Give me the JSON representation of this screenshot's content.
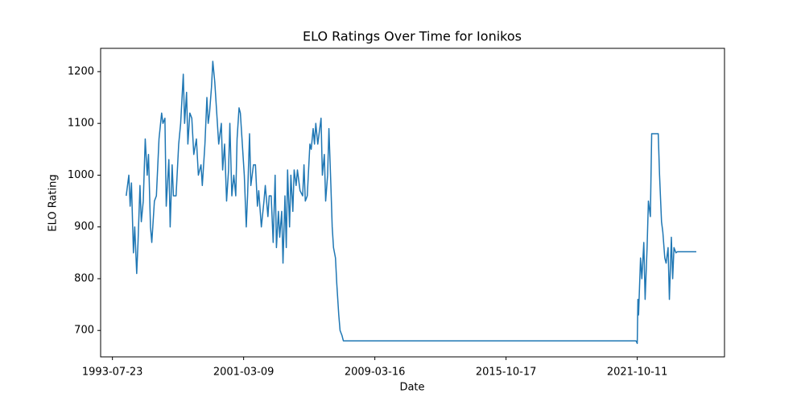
{
  "chart_data": {
    "type": "line",
    "title": "ELO Ratings Over Time for Ionikos",
    "x_label": "Date",
    "y_label": "ELO Rating",
    "x": [
      21,
      25,
      27,
      29,
      32,
      34,
      37,
      39,
      42,
      44,
      47,
      50,
      53,
      55,
      58,
      60,
      64,
      67,
      71,
      75,
      77,
      80,
      82,
      86,
      88,
      91,
      93,
      97,
      101,
      104,
      108,
      110,
      113,
      115,
      118,
      121,
      124,
      128,
      131,
      135,
      137,
      141,
      144,
      146,
      148,
      151,
      153,
      156,
      160,
      162,
      166,
      168,
      171,
      174,
      177,
      179,
      182,
      185,
      188,
      190,
      193,
      195,
      198,
      201,
      204,
      206,
      209,
      211,
      215,
      218,
      221,
      223,
      227,
      231,
      233,
      237,
      239,
      242,
      245,
      248,
      250,
      253,
      255,
      258,
      260,
      263,
      265,
      267,
      270,
      272,
      275,
      277,
      280,
      282,
      286,
      290,
      292,
      294,
      297,
      301,
      303,
      306,
      308,
      310,
      313,
      315,
      318,
      320,
      323,
      325,
      328,
      330,
      333,
      335,
      337,
      340,
      342,
      345,
      347,
      350,
      352,
      798,
      800,
      801,
      802,
      805,
      807,
      810,
      812,
      815,
      817,
      820,
      822,
      832,
      834,
      837,
      839,
      842,
      844,
      847,
      849,
      852,
      854,
      856,
      859,
      861,
      890
    ],
    "series": [
      {
        "name": "Ionikos",
        "color": "#1f77b4",
        "values": [
          960,
          1000,
          940,
          985,
          850,
          900,
          810,
          870,
          980,
          910,
          950,
          1070,
          1000,
          1040,
          900,
          870,
          950,
          960,
          1070,
          1120,
          1100,
          1110,
          940,
          1030,
          900,
          1020,
          960,
          960,
          1060,
          1100,
          1195,
          1100,
          1160,
          1060,
          1120,
          1110,
          1040,
          1070,
          1000,
          1020,
          980,
          1060,
          1150,
          1100,
          1120,
          1170,
          1220,
          1180,
          1100,
          1060,
          1100,
          1010,
          1060,
          950,
          1010,
          1100,
          960,
          1000,
          960,
          1070,
          1130,
          1120,
          1060,
          1000,
          900,
          960,
          1080,
          980,
          1020,
          1020,
          940,
          970,
          900,
          950,
          980,
          920,
          960,
          960,
          870,
          1000,
          860,
          930,
          880,
          930,
          830,
          960,
          860,
          1010,
          900,
          1000,
          930,
          1010,
          980,
          1010,
          970,
          960,
          1020,
          950,
          960,
          1060,
          1050,
          1090,
          1060,
          1100,
          1060,
          1080,
          1110,
          1000,
          1040,
          950,
          1000,
          1090,
          980,
          900,
          860,
          840,
          790,
          730,
          700,
          690,
          680,
          680,
          675,
          760,
          730,
          840,
          800,
          870,
          760,
          860,
          950,
          920,
          1080,
          1080,
          1000,
          910,
          890,
          840,
          830,
          860,
          760,
          880,
          800,
          860,
          850,
          852,
          852
        ]
      }
    ],
    "xlim": [
      -18,
      933
    ],
    "xticks": [
      {
        "value": 0,
        "label": "1993-07-23"
      },
      {
        "value": 200,
        "label": "2001-03-09"
      },
      {
        "value": 400,
        "label": "2009-03-16"
      },
      {
        "value": 600,
        "label": "2015-10-17"
      },
      {
        "value": 800,
        "label": "2021-10-11"
      }
    ],
    "ylim": [
      649,
      1245
    ],
    "yticks": [
      700,
      800,
      900,
      1000,
      1100,
      1200
    ]
  }
}
